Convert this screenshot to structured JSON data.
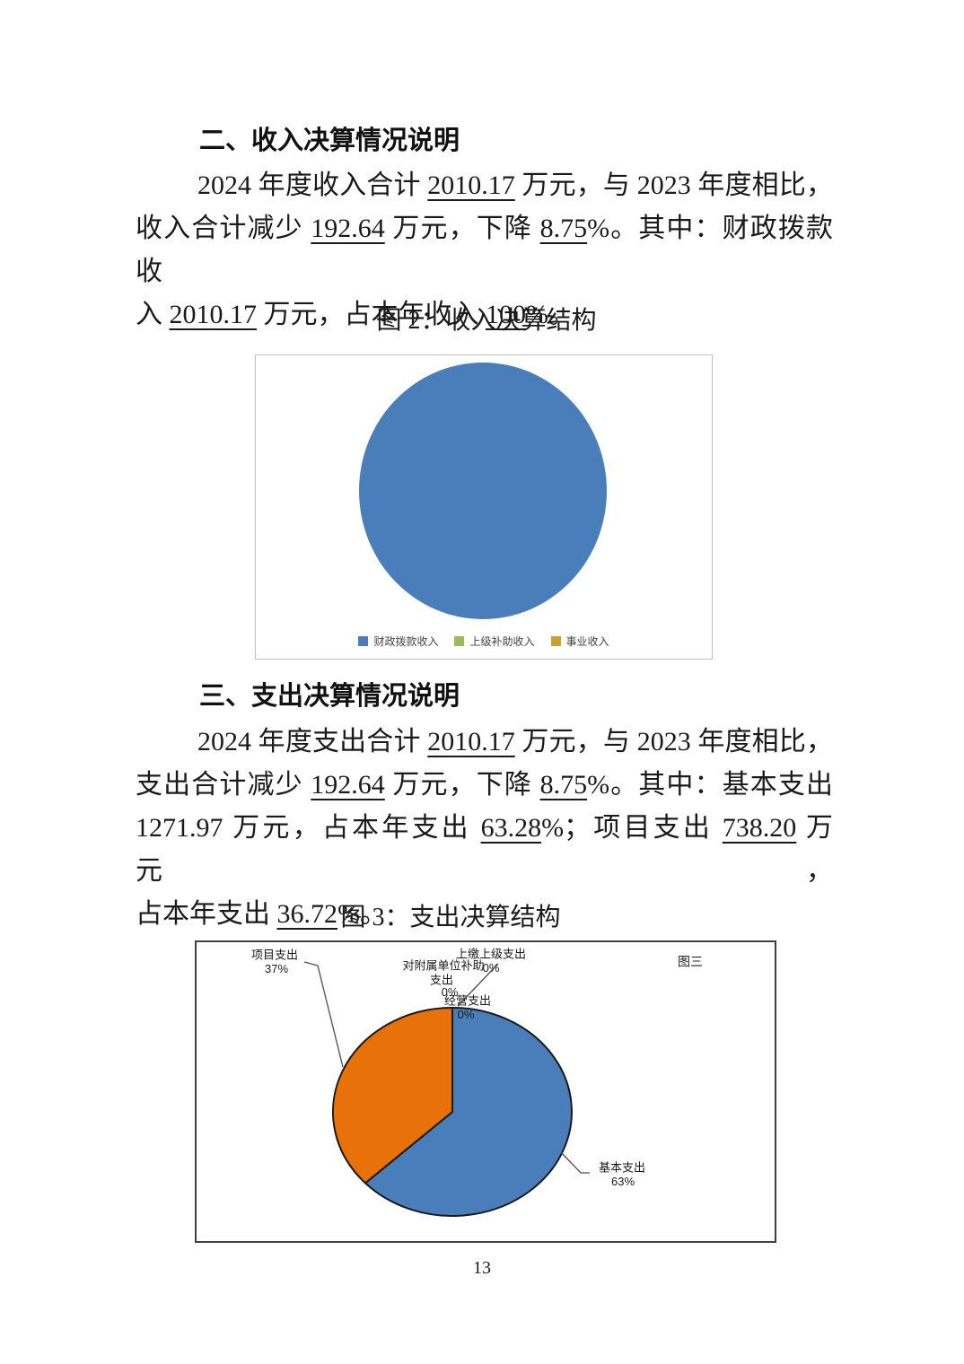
{
  "page": {
    "number": "13"
  },
  "sections": [
    {
      "heading": "二、收入决算情况说明",
      "figure_title": "图 2：收入决算结构",
      "lines": [
        [
          "2024 年度收入合计 ",
          "2010.17",
          " 万元，与 2023 年度相比，"
        ],
        [
          "收入合计减少 ",
          "192.64",
          " 万元，下降 ",
          "8.75",
          "%。其中：财政拨款收"
        ],
        [
          "入 ",
          "2010.17",
          " 万元，占本年收入 ",
          "100",
          "%。"
        ]
      ]
    },
    {
      "heading": "三、支出决算情况说明",
      "figure_title": "图 3：支出决算结构",
      "lines": [
        [
          "2024 年度支出合计 ",
          "2010.17",
          " 万元，与 2023 年度相比，"
        ],
        [
          "支出合计减少 ",
          "192.64",
          " 万元，下降 ",
          "8.75",
          "%。其中：基本支出"
        ],
        [
          "1271.97 万元，占本年支出 ",
          "63.28",
          "%；项目支出 ",
          "738.20",
          " 万元，"
        ],
        [
          "占本年支出 ",
          "36.72",
          "%。"
        ]
      ]
    }
  ],
  "chart_data": [
    {
      "type": "pie",
      "title": "图 2：收入决算结构",
      "labels": [
        "财政拨款收入",
        "上级补助收入",
        "事业收入"
      ],
      "values": [
        100,
        0,
        0
      ],
      "colors": [
        "#4a7ebb",
        "#9bbb59",
        "#c9a233"
      ],
      "legend_position": "bottom",
      "data_labels": false
    },
    {
      "type": "pie",
      "title": "图 3：支出决算结构",
      "corner_label": "图三",
      "labels": [
        "基本支出",
        "项目支出",
        "上缴上级支出",
        "对附属单位补助支出",
        "经营支出"
      ],
      "values": [
        63,
        37,
        0,
        0,
        0
      ],
      "colors": [
        "#4a7ebb",
        "#e8710a",
        "#4a7ebb",
        "#4a7ebb",
        "#4a7ebb"
      ],
      "outline": "#1a1a1a",
      "legend_position": "none",
      "callouts": {
        "jiben": {
          "name": "基本支出",
          "pct": "63%"
        },
        "xiangmu": {
          "name": "项目支出",
          "pct": "37%"
        },
        "shangjiao": {
          "name": "上缴上级支出",
          "pct": "0%"
        },
        "duifushu": {
          "name": "对附属单位补助",
          "name2": "支出",
          "pct": "0%"
        },
        "jingying": {
          "name": "经营支出",
          "pct": "0%"
        }
      }
    }
  ]
}
